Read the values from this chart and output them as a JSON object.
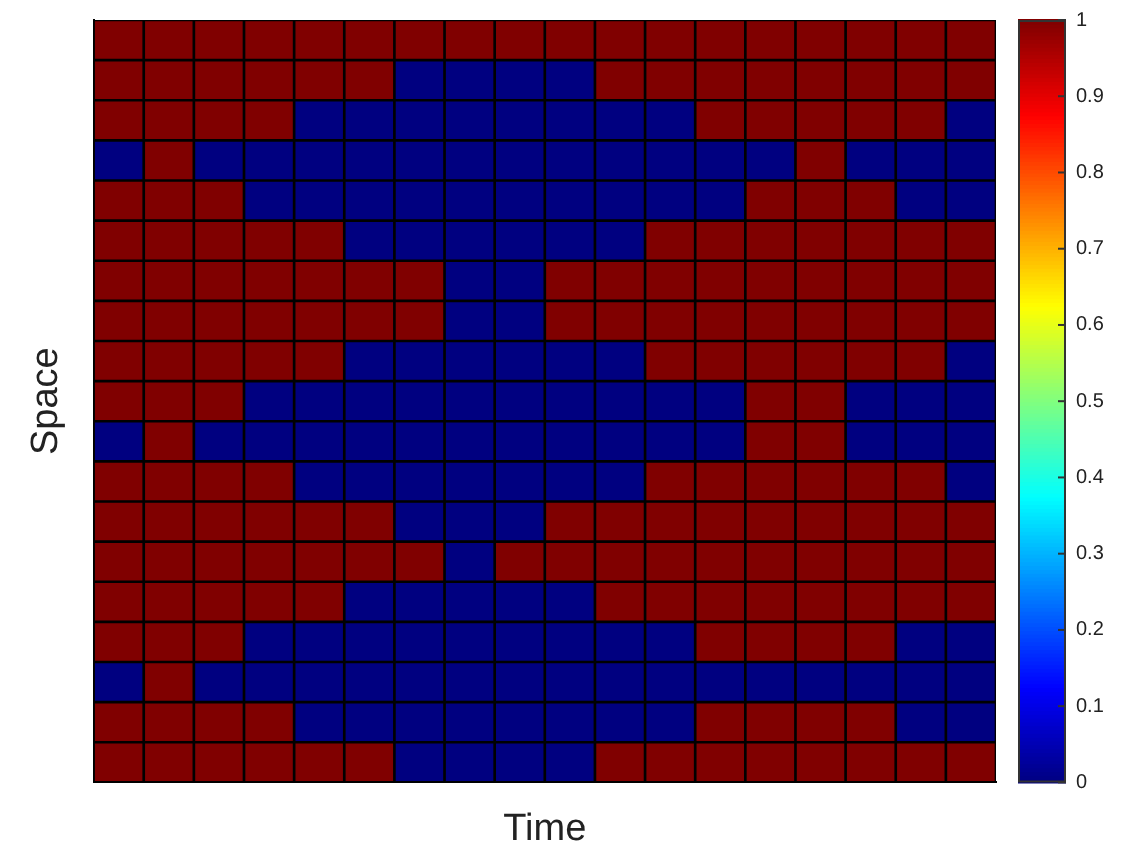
{
  "chart_data": {
    "type": "heatmap",
    "xlabel": "Time",
    "ylabel": "Space",
    "categories": [
      null,
      null,
      null,
      null,
      null,
      null,
      null,
      null,
      null,
      null,
      null,
      null,
      null,
      null,
      null,
      null,
      null,
      null
    ],
    "y_categories": [
      null,
      null,
      null,
      null,
      null,
      null,
      null,
      null,
      null,
      null,
      null,
      null,
      null,
      null,
      null,
      null,
      null,
      null,
      null
    ],
    "cells": [
      [
        1,
        1,
        1,
        1,
        1,
        1,
        1,
        1,
        1,
        1,
        1,
        1,
        1,
        1,
        1,
        1,
        1,
        1
      ],
      [
        1,
        1,
        1,
        1,
        1,
        1,
        0,
        0,
        0,
        0,
        1,
        1,
        1,
        1,
        1,
        1,
        1,
        1
      ],
      [
        1,
        1,
        1,
        1,
        0,
        0,
        0,
        0,
        0,
        0,
        0,
        0,
        1,
        1,
        1,
        1,
        1,
        0
      ],
      [
        0,
        1,
        0,
        0,
        0,
        0,
        0,
        0,
        0,
        0,
        0,
        0,
        0,
        0,
        1,
        0,
        0,
        0
      ],
      [
        1,
        1,
        1,
        0,
        0,
        0,
        0,
        0,
        0,
        0,
        0,
        0,
        0,
        1,
        1,
        1,
        0,
        0
      ],
      [
        1,
        1,
        1,
        1,
        1,
        0,
        0,
        0,
        0,
        0,
        0,
        1,
        1,
        1,
        1,
        1,
        1,
        1
      ],
      [
        1,
        1,
        1,
        1,
        1,
        1,
        1,
        0,
        0,
        1,
        1,
        1,
        1,
        1,
        1,
        1,
        1,
        1
      ],
      [
        1,
        1,
        1,
        1,
        1,
        1,
        1,
        0,
        0,
        1,
        1,
        1,
        1,
        1,
        1,
        1,
        1,
        1
      ],
      [
        1,
        1,
        1,
        1,
        1,
        0,
        0,
        0,
        0,
        0,
        0,
        1,
        1,
        1,
        1,
        1,
        1,
        0
      ],
      [
        1,
        1,
        1,
        0,
        0,
        0,
        0,
        0,
        0,
        0,
        0,
        0,
        0,
        1,
        1,
        0,
        0,
        0
      ],
      [
        0,
        1,
        0,
        0,
        0,
        0,
        0,
        0,
        0,
        0,
        0,
        0,
        0,
        1,
        1,
        0,
        0,
        0
      ],
      [
        1,
        1,
        1,
        1,
        0,
        0,
        0,
        0,
        0,
        0,
        0,
        1,
        1,
        1,
        1,
        1,
        1,
        0
      ],
      [
        1,
        1,
        1,
        1,
        1,
        1,
        0,
        0,
        0,
        1,
        1,
        1,
        1,
        1,
        1,
        1,
        1,
        1
      ],
      [
        1,
        1,
        1,
        1,
        1,
        1,
        1,
        0,
        1,
        1,
        1,
        1,
        1,
        1,
        1,
        1,
        1,
        1
      ],
      [
        1,
        1,
        1,
        1,
        1,
        0,
        0,
        0,
        0,
        0,
        1,
        1,
        1,
        1,
        1,
        1,
        1,
        1
      ],
      [
        1,
        1,
        1,
        0,
        0,
        0,
        0,
        0,
        0,
        0,
        0,
        0,
        1,
        1,
        1,
        1,
        0,
        0
      ],
      [
        0,
        1,
        0,
        0,
        0,
        0,
        0,
        0,
        0,
        0,
        0,
        0,
        0,
        0,
        0,
        0,
        0,
        0
      ],
      [
        1,
        1,
        1,
        1,
        0,
        0,
        0,
        0,
        0,
        0,
        0,
        0,
        1,
        1,
        1,
        1,
        0,
        0
      ],
      [
        1,
        1,
        1,
        1,
        1,
        1,
        0,
        0,
        0,
        0,
        1,
        1,
        1,
        1,
        1,
        1,
        1,
        1
      ]
    ],
    "clim": [
      0,
      1
    ],
    "cticks": [
      0,
      0.1,
      0.2,
      0.3,
      0.4,
      0.5,
      0.6,
      0.7,
      0.8,
      0.9,
      1
    ],
    "tick_labels": false
  }
}
